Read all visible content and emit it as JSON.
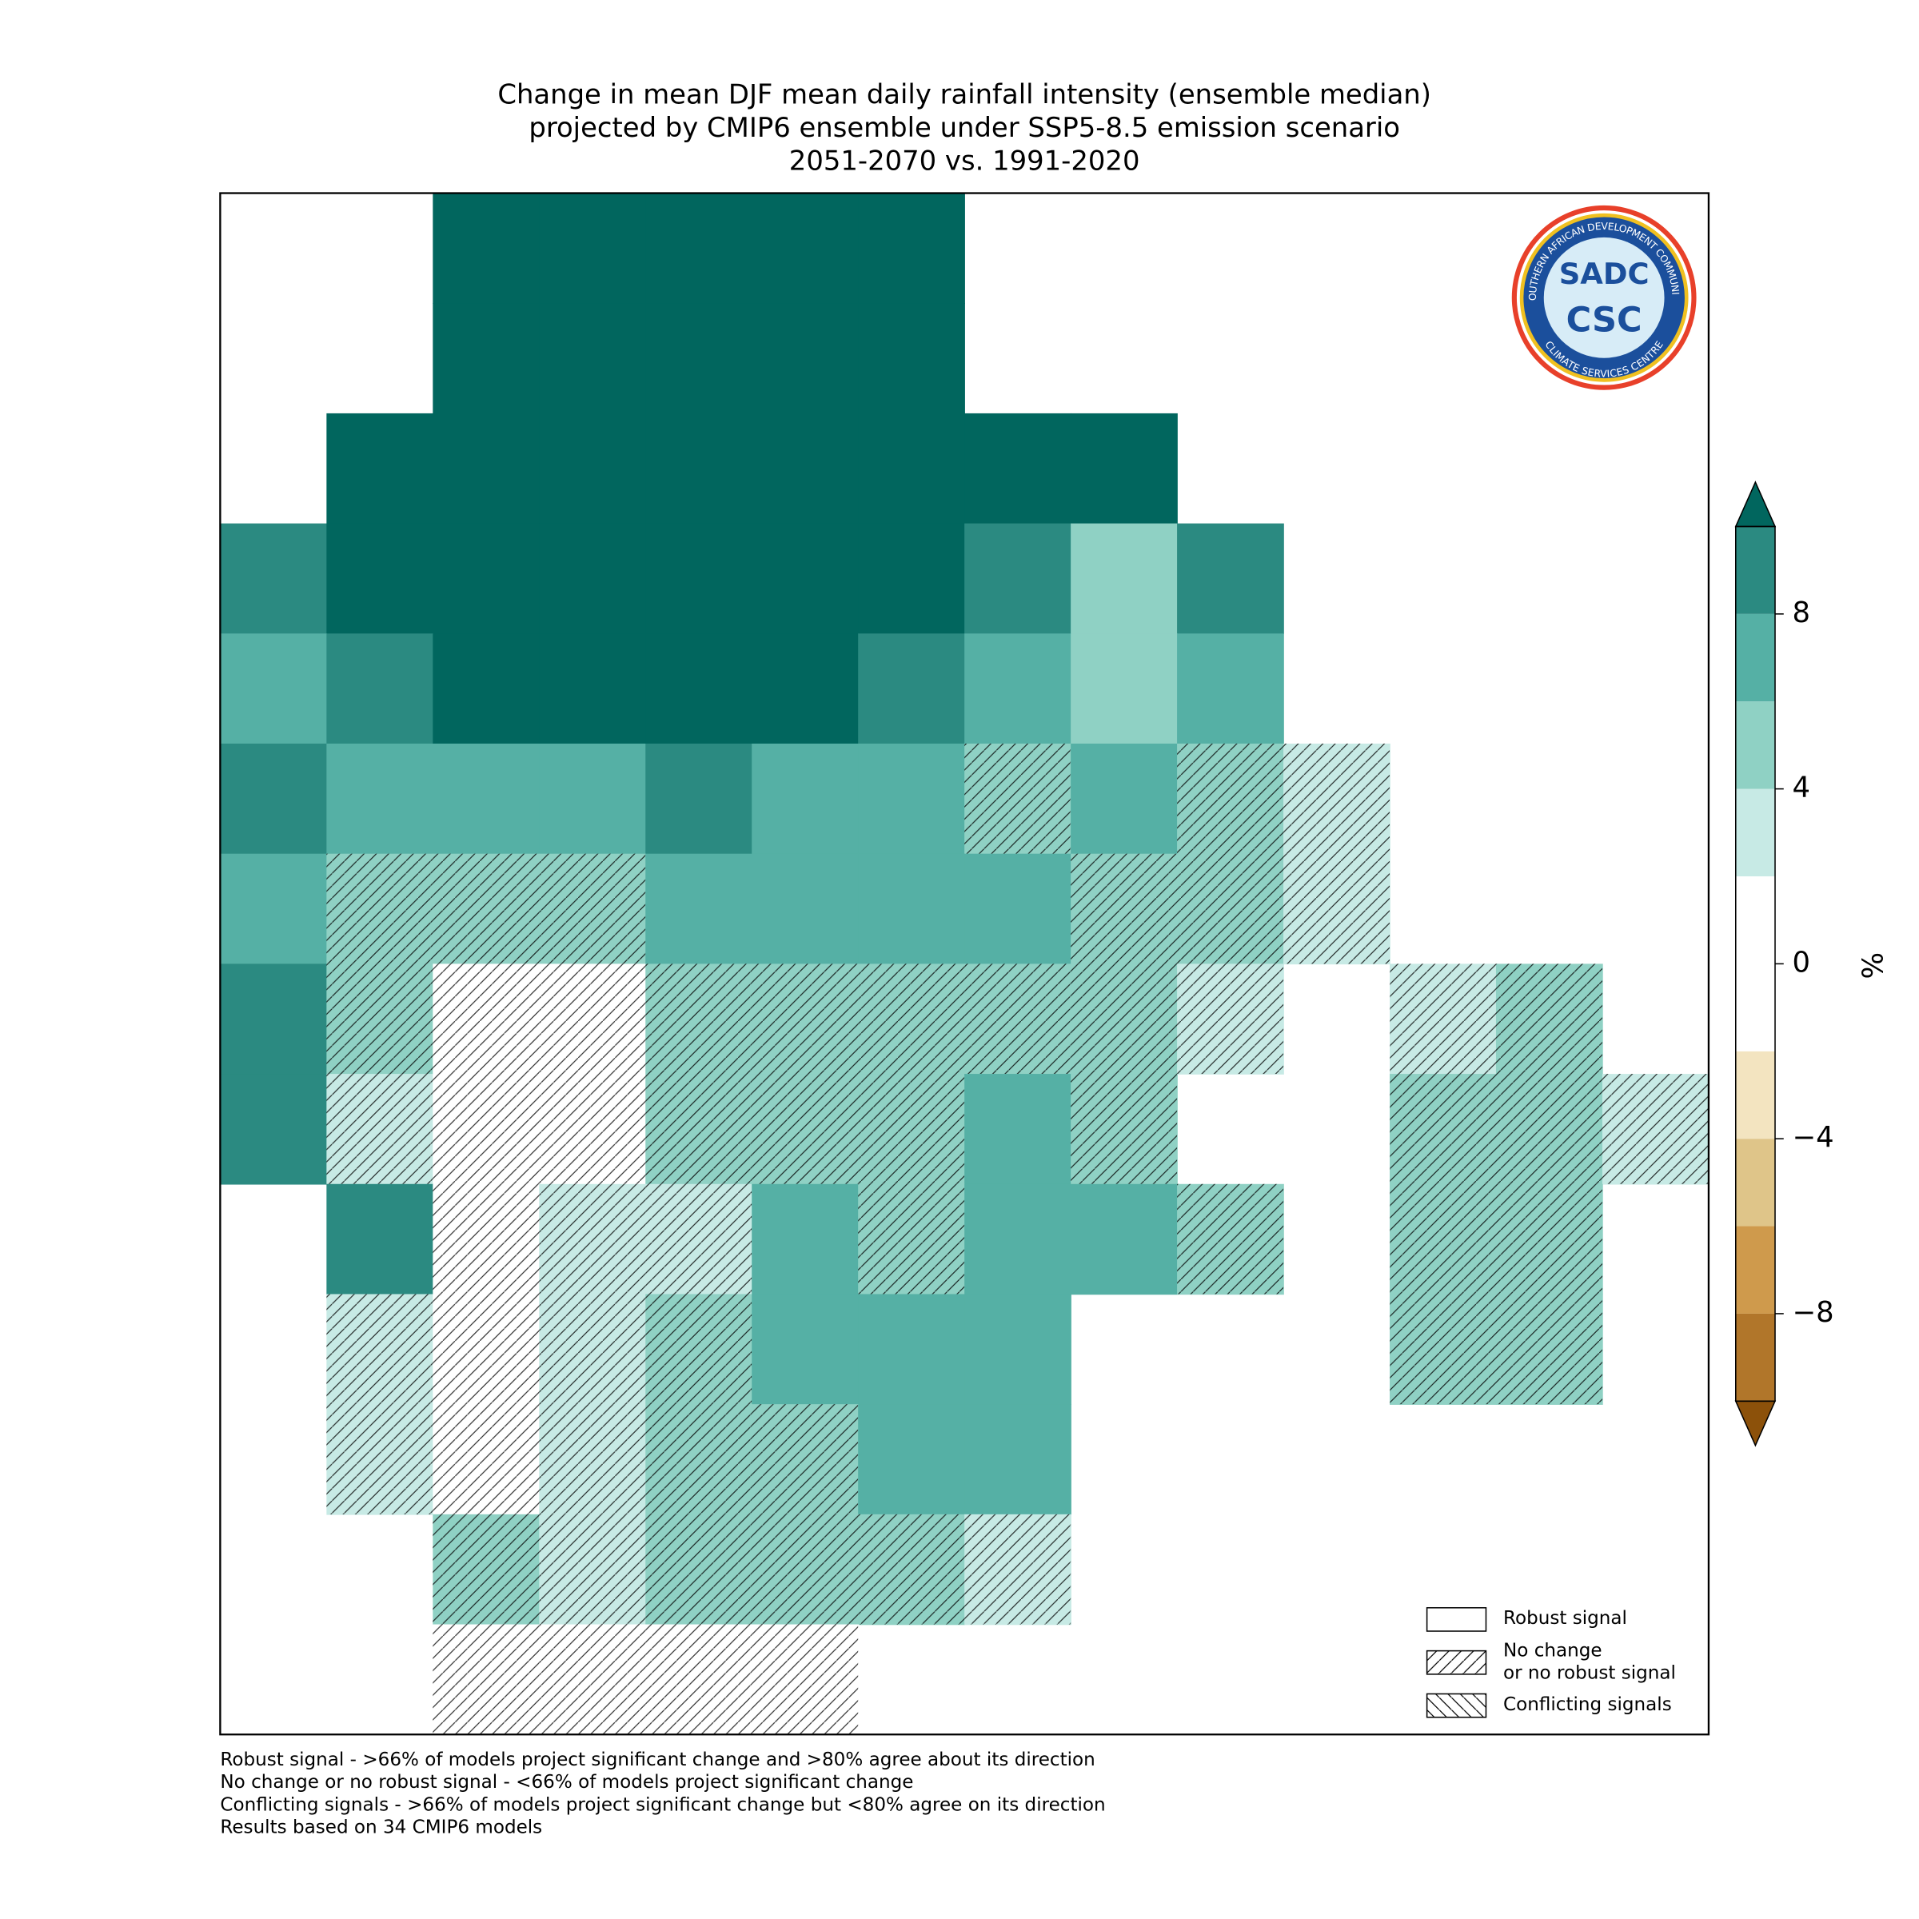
{
  "chart_data": {
    "type": "grid",
    "title_lines": [
      "Change in mean DJF mean daily rainfall intensity (ensemble median)",
      "projected by CMIP6 ensemble under SSP5-8.5 emission scenario",
      "2051-2070 vs. 1991-2020"
    ],
    "values": [
      [
        null,
        null,
        11,
        11,
        11,
        11,
        11,
        null,
        null,
        null,
        null,
        null,
        null,
        null
      ],
      [
        null,
        null,
        11,
        11,
        11,
        11,
        11,
        null,
        null,
        null,
        null,
        null,
        null,
        null
      ],
      [
        null,
        11,
        11,
        11,
        11,
        11,
        11,
        11,
        11,
        null,
        null,
        null,
        null,
        null
      ],
      [
        8,
        11,
        11,
        11,
        11,
        11,
        11,
        8,
        5,
        9,
        null,
        null,
        null,
        null
      ],
      [
        6,
        8,
        11,
        11,
        11,
        11,
        8,
        6,
        5,
        7,
        null,
        null,
        null,
        null
      ],
      [
        8,
        7,
        7,
        7,
        8,
        7,
        7,
        5,
        6,
        5,
        3,
        null,
        null,
        null
      ],
      [
        7,
        5,
        4,
        4,
        6,
        6,
        6,
        6,
        5,
        4,
        3,
        null,
        null,
        null
      ],
      [
        9,
        4,
        1,
        1,
        4,
        5,
        5,
        5,
        4,
        3,
        null,
        3,
        4,
        null
      ],
      [
        9,
        3,
        1,
        1,
        5,
        5,
        5,
        6,
        4,
        null,
        null,
        4,
        5,
        3
      ],
      [
        null,
        8,
        1,
        2,
        3,
        6,
        5,
        6,
        6,
        5,
        null,
        4,
        5,
        null
      ],
      [
        null,
        3,
        1,
        3,
        5,
        6,
        7,
        7,
        null,
        null,
        null,
        5,
        4,
        null
      ],
      [
        null,
        3,
        1,
        3,
        4,
        5,
        6,
        6,
        null,
        null,
        null,
        null,
        null,
        null
      ],
      [
        null,
        null,
        4,
        3,
        4,
        4,
        4,
        3,
        null,
        null,
        null,
        null,
        null,
        null
      ],
      [
        null,
        null,
        -2,
        -2,
        1,
        -2,
        null,
        null,
        null,
        null,
        null,
        null,
        null,
        null
      ]
    ],
    "levels": [
      -10,
      -8,
      -6,
      -4,
      -2,
      0,
      2,
      4,
      6,
      8,
      10
    ],
    "colors": [
      "#8c510a",
      "#b1762a",
      "#cf9a4c",
      "#dfc589",
      "#f3e4c0",
      "#ffffff",
      "#ffffff",
      "#c7eae5",
      "#8fd1c4",
      "#55b0a5",
      "#2b8a81",
      "#01665e"
    ],
    "clim": [
      -10,
      10
    ],
    "cticks": [
      {
        "value": -8,
        "label": "−8"
      },
      {
        "value": -4,
        "label": "−4"
      },
      0,
      4,
      8
    ],
    "colorbar_label": "%",
    "legend": [
      "Robust signal",
      "No change\nor no robust signal",
      "Conflicting signals"
    ],
    "notes": [
      "Robust signal - >66% of models project significant change and >80% agree about its direction",
      "No change or no robust signal - <66% of models project significant change",
      "Conflicting signals - >66% of models project significant change but <80% agree on its direction",
      "Results based on 34 CMIP6 models"
    ],
    "logo": {
      "top": "SADC",
      "main": "CSC",
      "ring_top": "SOUTHERN AFRICAN DEVELOPMENT COMMUNITY",
      "ring_bottom": "CLIMATE SERVICES CENTRE"
    }
  }
}
